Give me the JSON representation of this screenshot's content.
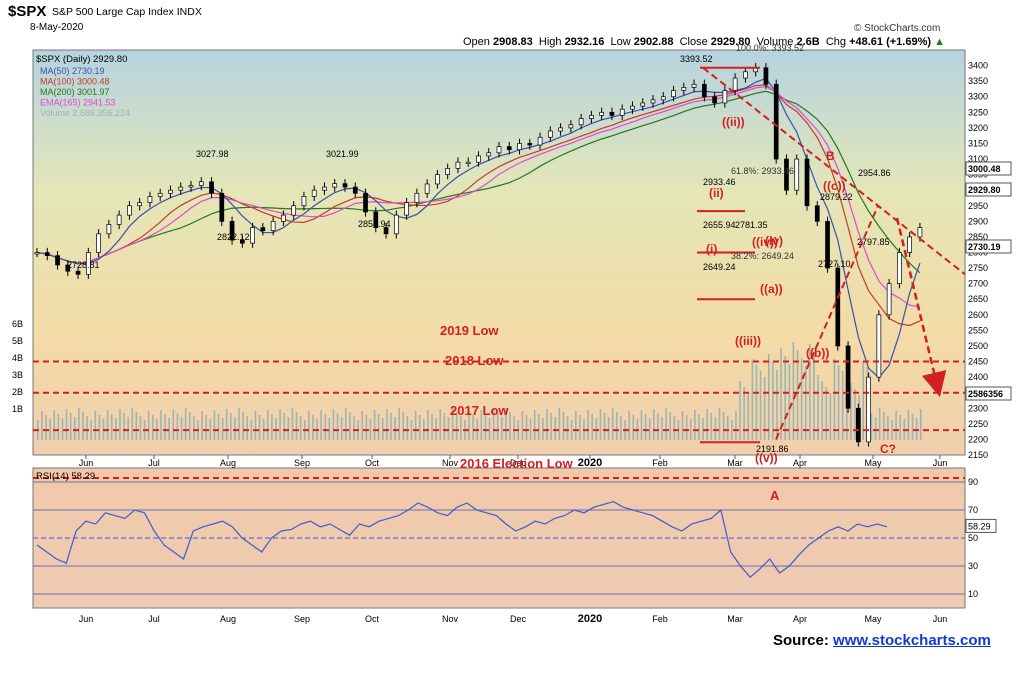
{
  "header": {
    "symbol": "$SPX",
    "name": "S&P 500 Large Cap Index",
    "exchange": "INDX",
    "date": "8-May-2020",
    "brand": "© StockCharts.com",
    "open_label": "Open",
    "open": "2908.83",
    "high_label": "High",
    "high": "2932.16",
    "low_label": "Low",
    "low": "2902.88",
    "close_label": "Close",
    "close": "2929.80",
    "volume_label": "Volume",
    "volume": "2.6B",
    "chg_label": "Chg",
    "chg": "+48.61 (+1.69%)",
    "chg_arrow": "▲"
  },
  "source": {
    "label": "Source:",
    "link": "www.stockcharts.com"
  },
  "colors": {
    "ma50": "#3a4fb0",
    "ma100": "#c43a2a",
    "ma200": "#1e7a1e",
    "ema165": "#e049d0",
    "volume": "#9db4b4",
    "annotation": "#d21f1f",
    "rsi": "#3e5bd1"
  },
  "chart_data": [
    {
      "type": "line",
      "title": "$SPX (Daily) 2929.80",
      "legend": [
        {
          "label": "MA(50) 2730.19",
          "color": "#3a4fb0"
        },
        {
          "label": "MA(100) 3000.48",
          "color": "#c43a2a"
        },
        {
          "label": "MA(200) 3001.97",
          "color": "#1e7a1e"
        },
        {
          "label": "EMA(165) 2941.53",
          "color": "#e049d0"
        },
        {
          "label": "Volume 2,586,356,224",
          "color": "#9db4b4"
        }
      ],
      "legend_position": "top-left",
      "ylim": [
        2150,
        3450
      ],
      "y_ticks": [
        2150,
        2200,
        2250,
        2300,
        2350,
        2400,
        2450,
        2500,
        2550,
        2600,
        2650,
        2700,
        2750,
        2800,
        2850,
        2900,
        2950,
        3000,
        3050,
        3100,
        3150,
        3200,
        3250,
        3300,
        3350,
        3400
      ],
      "x_ticks": [
        "Jun",
        "Jul",
        "Aug",
        "Sep",
        "Oct",
        "Nov",
        "Dec",
        "2020",
        "Feb",
        "Mar",
        "Apr",
        "May",
        "Jun"
      ],
      "series": [
        {
          "name": "$SPX",
          "x": [
            0,
            5,
            10,
            15,
            20,
            25,
            30,
            35,
            40,
            45,
            50,
            55,
            60,
            65,
            70,
            75,
            80,
            85,
            90,
            95,
            100,
            105,
            110,
            115,
            120,
            125,
            130,
            135,
            140,
            145,
            150,
            155,
            160,
            165,
            170,
            175,
            180,
            185,
            190,
            195,
            200,
            205,
            210,
            215,
            220,
            225,
            230,
            235,
            240,
            245,
            250,
            255,
            260,
            265,
            270,
            275,
            280,
            285,
            290,
            295,
            300,
            305,
            310,
            315,
            320,
            325,
            330,
            335,
            340,
            345,
            350,
            355,
            360,
            365,
            370,
            375,
            380,
            385,
            390,
            395,
            400,
            405,
            410,
            415,
            420,
            425,
            430
          ],
          "values": [
            2800,
            2790,
            2760,
            2740,
            2730,
            2800,
            2860,
            2890,
            2920,
            2950,
            2960,
            2980,
            2990,
            3000,
            3010,
            3015,
            3027,
            2990,
            2900,
            2840,
            2830,
            2880,
            2870,
            2900,
            2920,
            2950,
            2980,
            3000,
            3010,
            3021,
            3010,
            2990,
            2930,
            2880,
            2860,
            2920,
            2960,
            2990,
            3020,
            3050,
            3070,
            3090,
            3090,
            3110,
            3120,
            3140,
            3130,
            3150,
            3145,
            3170,
            3190,
            3200,
            3210,
            3230,
            3240,
            3250,
            3240,
            3260,
            3270,
            3280,
            3290,
            3300,
            3320,
            3330,
            3340,
            3300,
            3280,
            3320,
            3360,
            3380,
            3393,
            3340,
            3100,
            3000,
            3100,
            2950,
            2900,
            2750,
            2500,
            2300,
            2192,
            2400,
            2600,
            2700,
            2800,
            2850,
            2880
          ]
        },
        {
          "name": "MA(50)",
          "value_label": "2730.19"
        },
        {
          "name": "MA(100)",
          "value_label": "3000.48"
        },
        {
          "name": "MA(200)",
          "value_label": "3001.97"
        },
        {
          "name": "EMA(165)",
          "value_label": "2941.53"
        }
      ],
      "price_labels": [
        "3393.52",
        "3027.98",
        "3021.99",
        "2822.12",
        "2855.94",
        "2728.81",
        "2954.86",
        "2879.22",
        "2797.85",
        "2727.10",
        "2191.86",
        "2933.46",
        "2655.94",
        "2781.35",
        "2649.24"
      ],
      "fib_labels": [
        "100.0%: 3393.52",
        "61.8%: 2933.46",
        "38.2%: 2649.24"
      ],
      "right_axis_badges": [
        "3000.48",
        "2929.80",
        "2730.19",
        "2586356"
      ],
      "volume_axis": [
        "6B",
        "5B",
        "4B",
        "3B",
        "2B",
        "1B"
      ],
      "annotations": [
        "2019 Low",
        "2018 Low",
        "2017 Low",
        "2016 Election Low",
        "B",
        "C?",
        "((ii))",
        "((iii))",
        "((iv))",
        "((v))",
        "((a))",
        "((b))",
        "((c))",
        "(i)",
        "(ii)",
        "(iv)"
      ]
    },
    {
      "type": "line",
      "title": "RSI(14) 58.29",
      "ylim": [
        0,
        100
      ],
      "y_ticks": [
        10,
        30,
        50,
        70,
        90
      ],
      "value_label": "58.29",
      "annotation": "A",
      "x_ticks": [
        "Jun",
        "Jul",
        "Aug",
        "Sep",
        "Oct",
        "Nov",
        "Dec",
        "2020",
        "Feb",
        "Mar",
        "Apr",
        "May",
        "Jun"
      ],
      "series": [
        {
          "name": "RSI(14)",
          "values": [
            45,
            40,
            35,
            32,
            55,
            62,
            60,
            68,
            66,
            64,
            70,
            68,
            55,
            45,
            40,
            35,
            55,
            58,
            60,
            62,
            58,
            50,
            45,
            40,
            50,
            55,
            56,
            60,
            62,
            58,
            60,
            56,
            52,
            60,
            58,
            62,
            64,
            66,
            70,
            75,
            72,
            68,
            66,
            72,
            75,
            70,
            68,
            66,
            60,
            55,
            58,
            62,
            60,
            64,
            66,
            70,
            68,
            72,
            74,
            76,
            72,
            70,
            68,
            66,
            62,
            58,
            55,
            60,
            62,
            64,
            70,
            40,
            30,
            22,
            28,
            35,
            25,
            30,
            38,
            45,
            50,
            55,
            58,
            55,
            60,
            58,
            60,
            58
          ]
        }
      ]
    }
  ]
}
